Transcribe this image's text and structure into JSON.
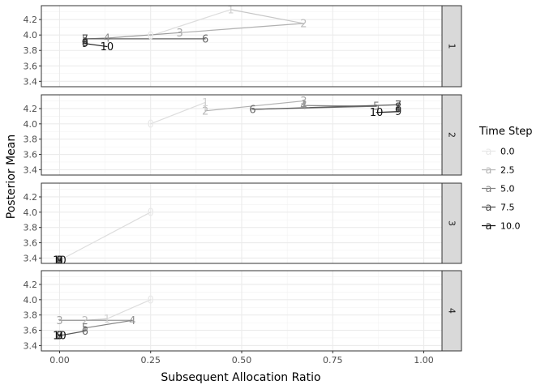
{
  "chart_data": {
    "type": "line",
    "xlabel": "Subsequent Allocation Ratio",
    "ylabel": "Posterior Mean",
    "xlim": [
      -0.05,
      1.05
    ],
    "ylim": [
      3.33,
      4.38
    ],
    "x_ticks": [
      0.0,
      0.25,
      0.5,
      0.75,
      1.0
    ],
    "x_tick_labels": [
      "0.00",
      "0.25",
      "0.50",
      "0.75",
      "1.00"
    ],
    "y_ticks": [
      3.4,
      3.6,
      3.8,
      4.0,
      4.2
    ],
    "y_tick_labels": [
      "3.4",
      "3.6",
      "3.8",
      "4.0",
      "4.2"
    ],
    "grid": true,
    "legend": {
      "title": "Time Step",
      "position": "right",
      "key_glyph": "a",
      "items": [
        {
          "label": "0.0",
          "color": "#e8e8e8"
        },
        {
          "label": "2.5",
          "color": "#b5b5b5"
        },
        {
          "label": "5.0",
          "color": "#838383"
        },
        {
          "label": "7.5",
          "color": "#4d4d4d"
        },
        {
          "label": "10.0",
          "color": "#0d0d0d"
        }
      ]
    },
    "panels": [
      {
        "strip": "1",
        "points": [
          {
            "t": 0,
            "x": 0.25,
            "y": 3.99
          },
          {
            "t": 1,
            "x": 0.47,
            "y": 4.33
          },
          {
            "t": 2,
            "x": 0.67,
            "y": 4.15
          },
          {
            "t": 3,
            "x": 0.33,
            "y": 4.03
          },
          {
            "t": 4,
            "x": 0.13,
            "y": 3.96
          },
          {
            "t": 5,
            "x": 0.07,
            "y": 3.95
          },
          {
            "t": 6,
            "x": 0.4,
            "y": 3.95
          },
          {
            "t": 7,
            "x": 0.07,
            "y": 3.95
          },
          {
            "t": 8,
            "x": 0.07,
            "y": 3.9
          },
          {
            "t": 9,
            "x": 0.07,
            "y": 3.89
          },
          {
            "t": 10,
            "x": 0.13,
            "y": 3.85
          }
        ]
      },
      {
        "strip": "2",
        "points": [
          {
            "t": 0,
            "x": 0.25,
            "y": 4.0
          },
          {
            "t": 1,
            "x": 0.4,
            "y": 4.28
          },
          {
            "t": 2,
            "x": 0.4,
            "y": 4.17
          },
          {
            "t": 3,
            "x": 0.67,
            "y": 4.3
          },
          {
            "t": 4,
            "x": 0.67,
            "y": 4.24
          },
          {
            "t": 5,
            "x": 0.87,
            "y": 4.23
          },
          {
            "t": 6,
            "x": 0.53,
            "y": 4.19
          },
          {
            "t": 7,
            "x": 0.93,
            "y": 4.25
          },
          {
            "t": 8,
            "x": 0.93,
            "y": 4.22
          },
          {
            "t": 9,
            "x": 0.93,
            "y": 4.16
          },
          {
            "t": 10,
            "x": 0.87,
            "y": 4.15
          }
        ]
      },
      {
        "strip": "3",
        "points": [
          {
            "t": 0,
            "x": 0.25,
            "y": 4.0
          },
          {
            "t": 1,
            "x": 0.0,
            "y": 3.37
          },
          {
            "t": 2,
            "x": 0.0,
            "y": 3.37
          },
          {
            "t": 3,
            "x": 0.0,
            "y": 3.37
          },
          {
            "t": 4,
            "x": 0.0,
            "y": 3.37
          },
          {
            "t": 5,
            "x": 0.0,
            "y": 3.37
          },
          {
            "t": 6,
            "x": 0.0,
            "y": 3.37
          },
          {
            "t": 7,
            "x": 0.0,
            "y": 3.37
          },
          {
            "t": 8,
            "x": 0.0,
            "y": 3.37
          },
          {
            "t": 9,
            "x": 0.0,
            "y": 3.37
          },
          {
            "t": 10,
            "x": 0.0,
            "y": 3.37
          }
        ]
      },
      {
        "strip": "4",
        "points": [
          {
            "t": 0,
            "x": 0.25,
            "y": 4.0
          },
          {
            "t": 1,
            "x": 0.13,
            "y": 3.75
          },
          {
            "t": 2,
            "x": 0.07,
            "y": 3.73
          },
          {
            "t": 3,
            "x": 0.0,
            "y": 3.73
          },
          {
            "t": 4,
            "x": 0.2,
            "y": 3.73
          },
          {
            "t": 5,
            "x": 0.07,
            "y": 3.63
          },
          {
            "t": 6,
            "x": 0.07,
            "y": 3.59
          },
          {
            "t": 7,
            "x": 0.0,
            "y": 3.53
          },
          {
            "t": 8,
            "x": 0.0,
            "y": 3.53
          },
          {
            "t": 9,
            "x": 0.0,
            "y": 3.53
          },
          {
            "t": 10,
            "x": 0.0,
            "y": 3.53
          }
        ]
      }
    ]
  }
}
